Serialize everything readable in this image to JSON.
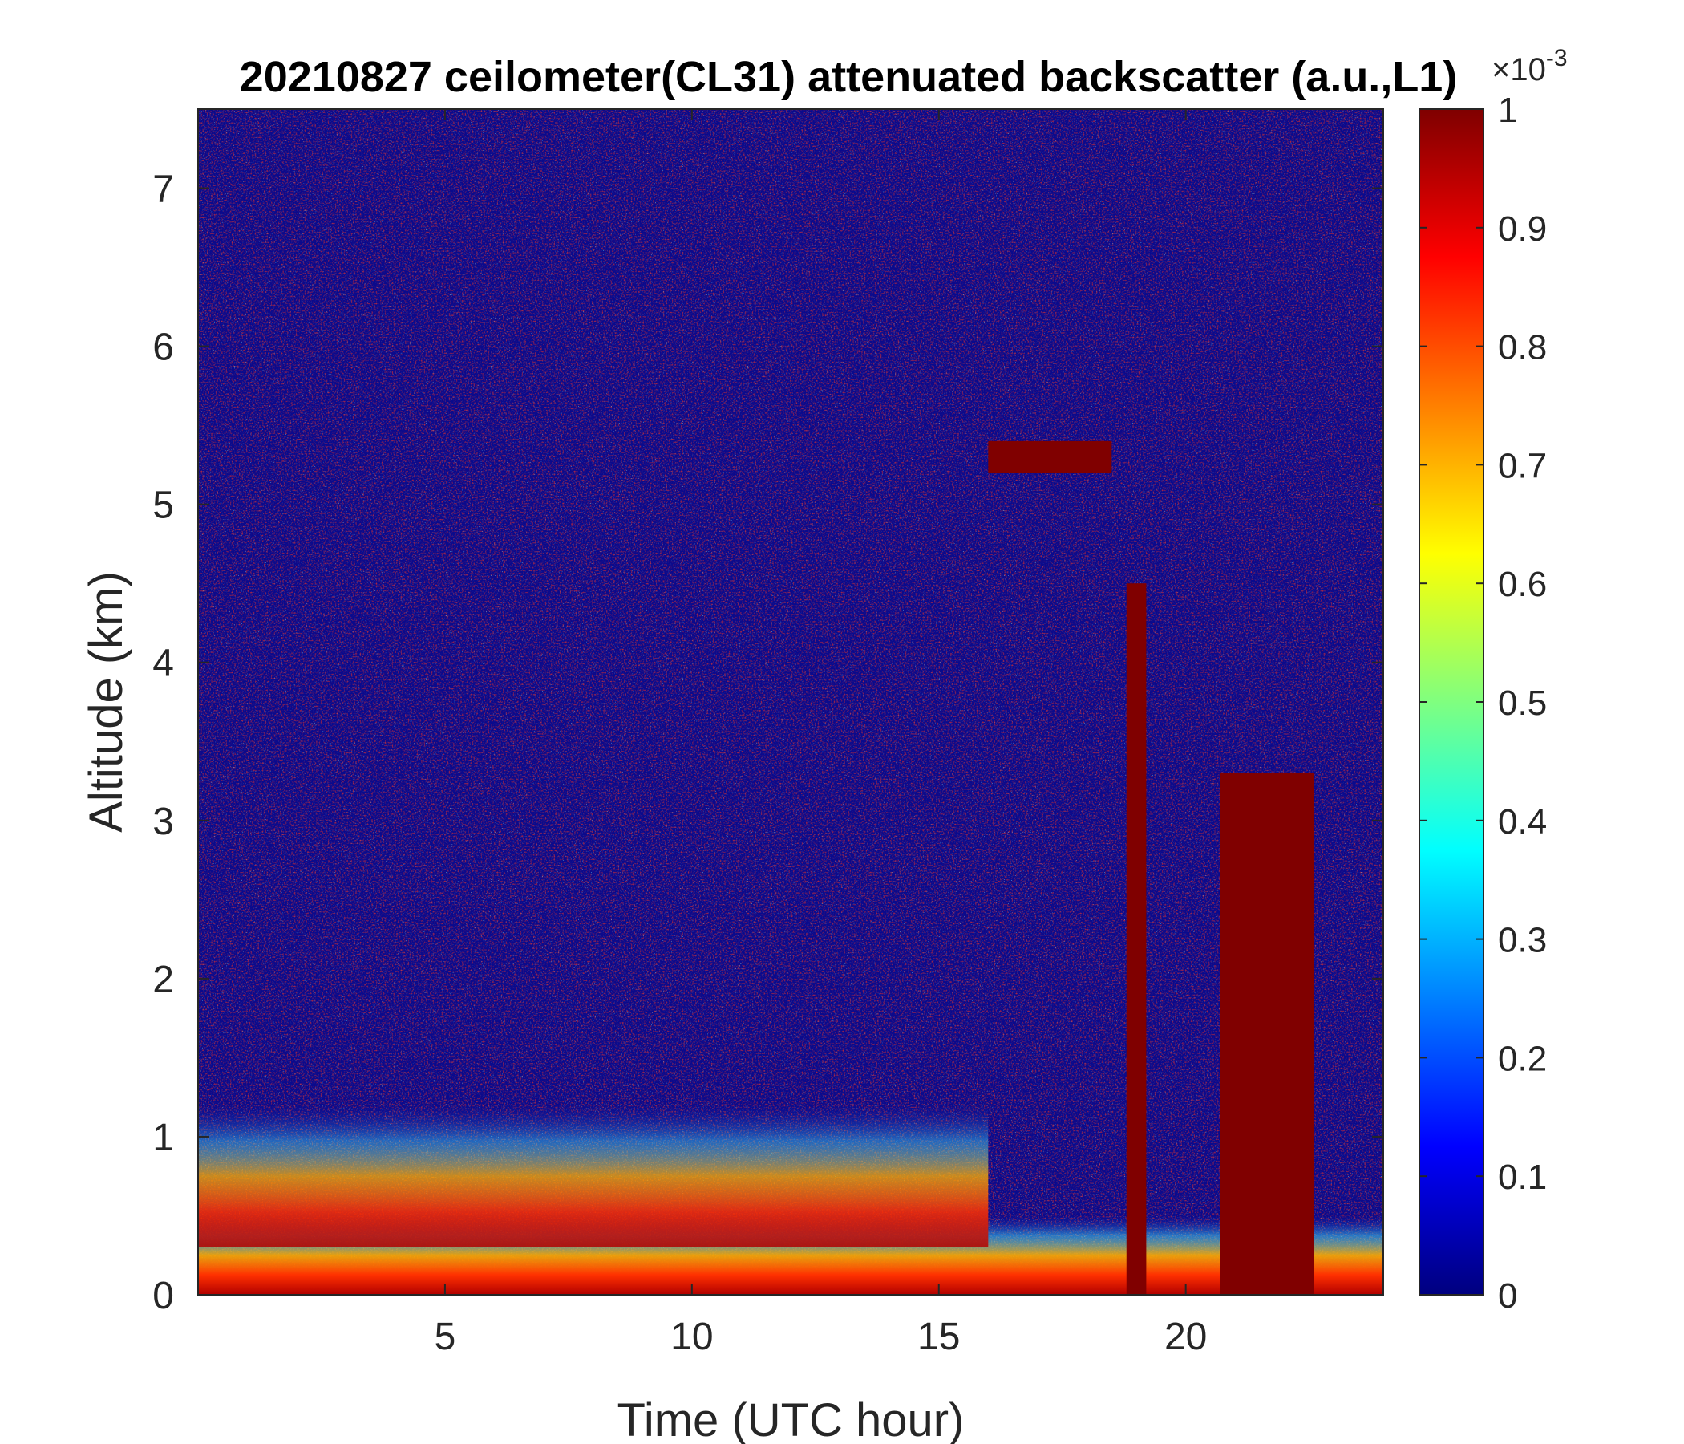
{
  "chart_data": {
    "type": "heatmap",
    "title": "20210827 ceilometer(CL31) attenuated backscatter (a.u.,L1)",
    "xlabel": "Time (UTC hour)",
    "ylabel": "Altitude (km)",
    "xlim": [
      0,
      24
    ],
    "ylim": [
      0,
      7.5
    ],
    "x_ticks": [
      5,
      10,
      15,
      20
    ],
    "y_ticks": [
      0,
      1,
      2,
      3,
      4,
      5,
      6,
      7
    ],
    "colorbar": {
      "colormap": "jet",
      "range": [
        0,
        1
      ],
      "ticks": [
        0,
        0.1,
        0.2,
        0.3,
        0.4,
        0.5,
        0.6,
        0.7,
        0.8,
        0.9,
        1
      ],
      "tick_labels": [
        "0",
        "0.1",
        "0.2",
        "0.3",
        "0.4",
        "0.5",
        "0.6",
        "0.7",
        "0.8",
        "0.9",
        "1"
      ],
      "exponent_base": "×10",
      "exponent_power": "-3"
    },
    "features": [
      {
        "description": "high backscatter surface layer",
        "x_range": [
          0,
          24
        ],
        "altitude_range": [
          0,
          0.5
        ],
        "value": 0.9
      },
      {
        "description": "aerosol boundary layer",
        "x_range": [
          0,
          16
        ],
        "altitude_range": [
          0.3,
          1.2
        ],
        "value": 0.6
      },
      {
        "description": "cloud/precipitation column",
        "x_range": [
          18.8,
          19.2
        ],
        "altitude_range": [
          0,
          4.5
        ],
        "value": 1.0
      },
      {
        "description": "cloud/precipitation column",
        "x_range": [
          20.7,
          22.6
        ],
        "altitude_range": [
          0,
          3.3
        ],
        "value": 1.0
      },
      {
        "description": "elevated layer",
        "x_range": [
          16,
          18.5
        ],
        "altitude_range": [
          5.2,
          5.4
        ],
        "value": 1.0
      },
      {
        "description": "noise-dominated upper region",
        "x_range": [
          0,
          24
        ],
        "altitude_range": [
          1.5,
          7.5
        ],
        "value": 0.05
      }
    ]
  }
}
